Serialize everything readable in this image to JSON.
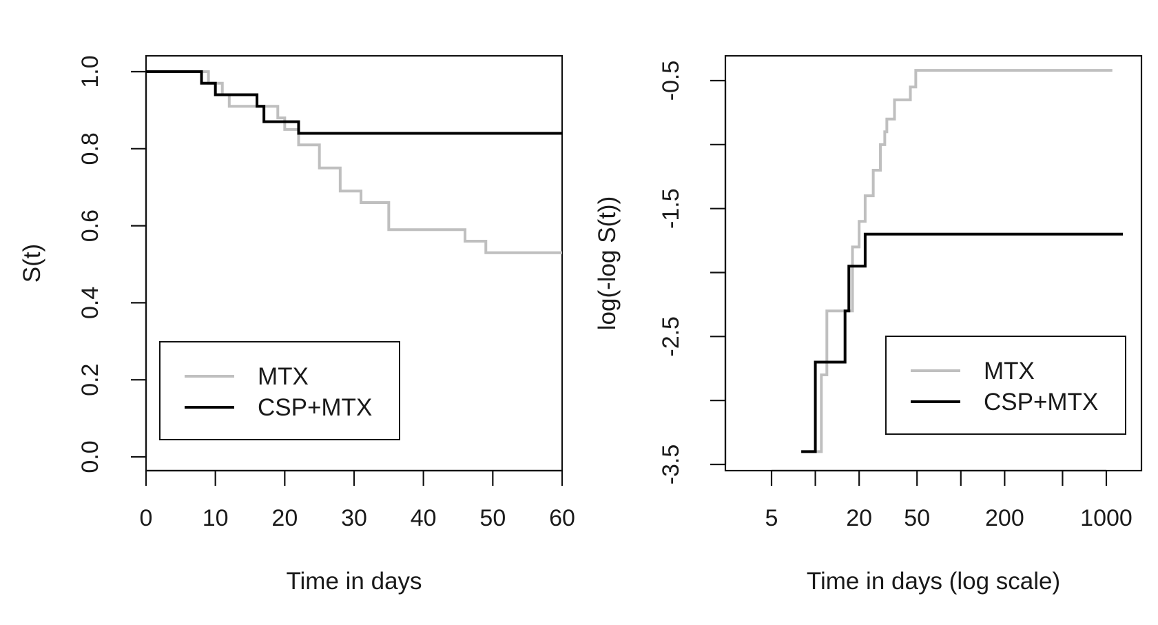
{
  "chart_data": [
    {
      "type": "line",
      "step": true,
      "xlabel": "Time in days",
      "ylabel": "S(t)",
      "xlim": [
        0,
        60
      ],
      "ylim": [
        0,
        1
      ],
      "xscale": "linear",
      "x_ticks": [
        0,
        10,
        20,
        30,
        40,
        50,
        60
      ],
      "y_ticks": [
        0.0,
        0.2,
        0.4,
        0.6,
        0.8,
        1.0
      ],
      "y_tick_labels": [
        "0.0",
        "0.2",
        "0.4",
        "0.6",
        "0.8",
        "1.0"
      ],
      "grid": false,
      "legend_position": "bottom-left",
      "series": [
        {
          "name": "MTX",
          "color": "#bfbfbf",
          "x": [
            0,
            9,
            11,
            12,
            19,
            20,
            22,
            25,
            28,
            31,
            35,
            46,
            49,
            60
          ],
          "y": [
            1.0,
            0.97,
            0.94,
            0.91,
            0.88,
            0.85,
            0.81,
            0.75,
            0.69,
            0.66,
            0.59,
            0.56,
            0.53,
            0.53
          ]
        },
        {
          "name": "CSP+MTX",
          "color": "#000000",
          "x": [
            0,
            8,
            10,
            16,
            17,
            22,
            60
          ],
          "y": [
            1.0,
            0.97,
            0.94,
            0.91,
            0.87,
            0.84,
            0.84
          ]
        }
      ]
    },
    {
      "type": "line",
      "step": true,
      "xlabel": "Time in days (log scale)",
      "ylabel": "log(-log S(t))",
      "xscale": "log",
      "xlim": [
        2,
        1700
      ],
      "ylim": [
        -3.6,
        -0.3
      ],
      "x_ticks": [
        5,
        10,
        20,
        50,
        100,
        200,
        500,
        1000
      ],
      "x_tick_labels": [
        "5",
        "",
        "20",
        "50",
        "",
        "200",
        "",
        "1000"
      ],
      "y_ticks": [
        -3.5,
        -3.0,
        -2.5,
        -2.0,
        -1.5,
        -1.0,
        -0.5
      ],
      "y_tick_labels": [
        "-3.5",
        "",
        "-2.5",
        "",
        "-1.5",
        "",
        "-0.5"
      ],
      "grid": false,
      "legend_position": "bottom-right",
      "series": [
        {
          "name": "MTX",
          "color": "#bfbfbf",
          "x": [
            9,
            11,
            12,
            18,
            20,
            22,
            25,
            28,
            30,
            31,
            35,
            45,
            49,
            1100
          ],
          "y": [
            -3.4,
            -2.8,
            -2.3,
            -1.8,
            -1.6,
            -1.4,
            -1.2,
            -1.0,
            -0.9,
            -0.8,
            -0.65,
            -0.55,
            -0.42,
            -0.42
          ]
        },
        {
          "name": "CSP+MTX",
          "color": "#000000",
          "x": [
            8,
            10,
            16,
            17,
            22,
            1300
          ],
          "y": [
            -3.4,
            -2.7,
            -2.3,
            -1.95,
            -1.7,
            -1.7
          ]
        }
      ]
    }
  ]
}
